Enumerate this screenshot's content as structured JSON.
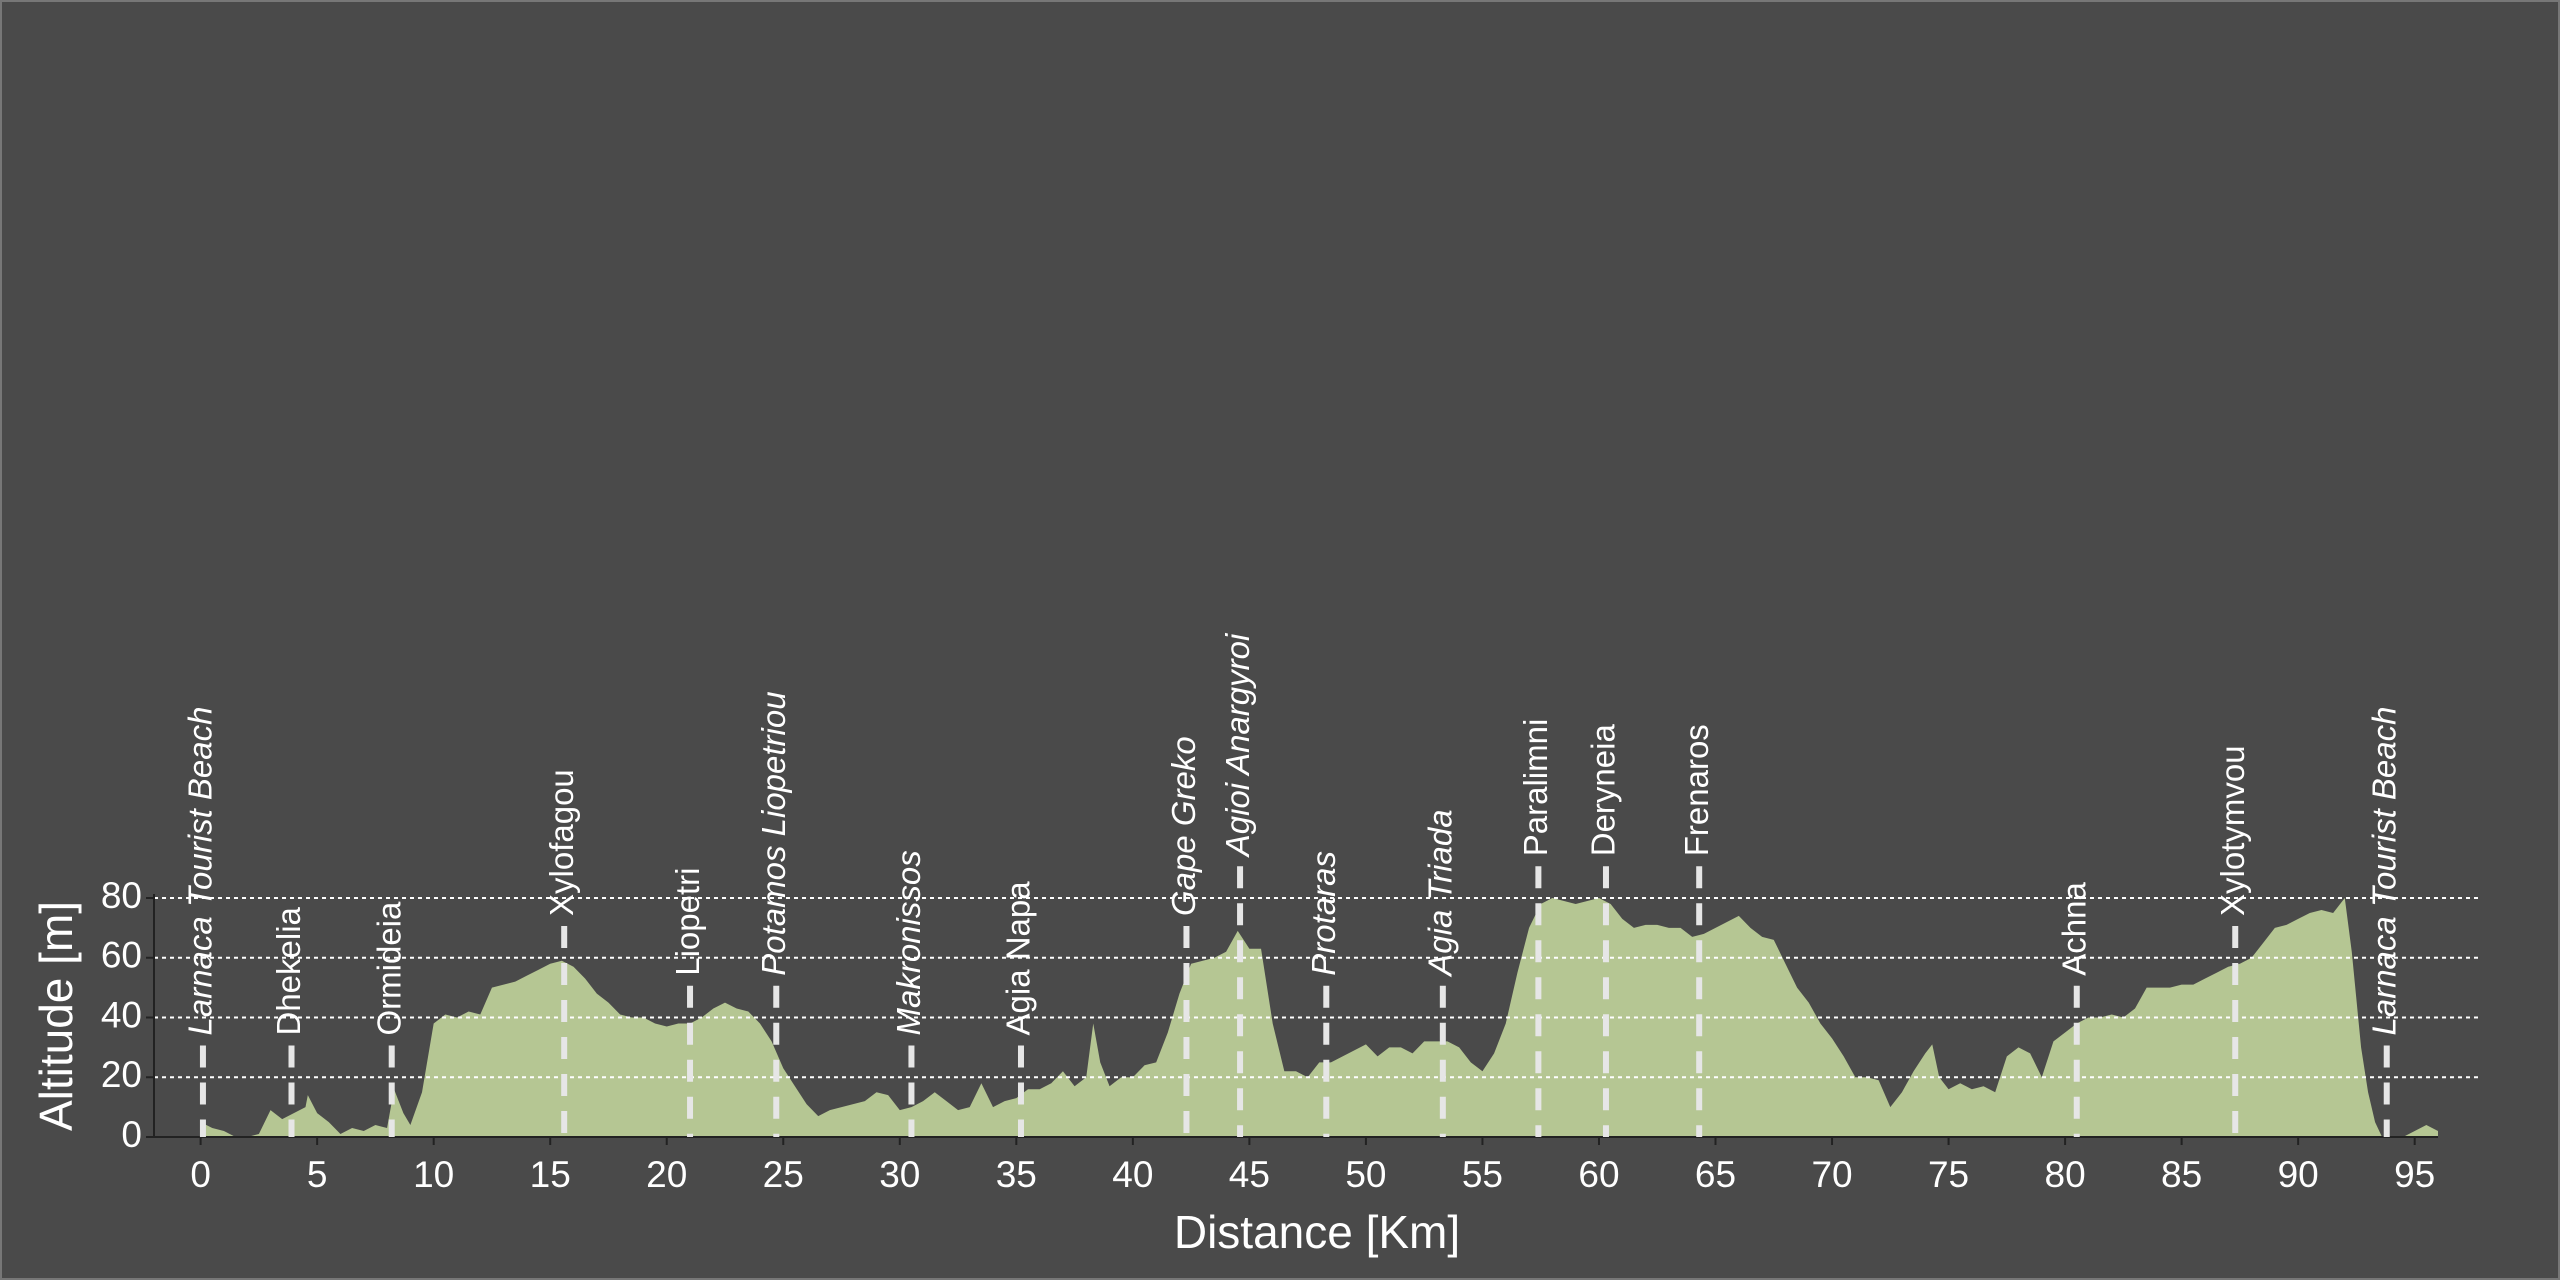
{
  "chart_data": {
    "type": "area",
    "xlabel": "Distance [Km]",
    "ylabel": "Altitude [m]",
    "color": "#b5c693",
    "xlim": [
      -2,
      96
    ],
    "ylim": [
      0,
      80
    ],
    "xticks": [
      0,
      5,
      10,
      15,
      20,
      25,
      30,
      35,
      40,
      45,
      50,
      55,
      60,
      65,
      70,
      75,
      80,
      85,
      90,
      95
    ],
    "yticks": [
      0,
      20,
      40,
      60,
      80
    ],
    "grid": true,
    "x": [
      0,
      0.5,
      1,
      1.5,
      2,
      2.5,
      3,
      3.5,
      4,
      4.5,
      4.6,
      5,
      5.5,
      6,
      6.5,
      7,
      7.5,
      8,
      8.3,
      8.7,
      9,
      9.5,
      10,
      10.5,
      11,
      11.5,
      12,
      12.5,
      13,
      13.5,
      14,
      14.5,
      15,
      15.5,
      16,
      16.5,
      17,
      17.5,
      18,
      18.5,
      19,
      19.5,
      20,
      20.5,
      21,
      21.5,
      22,
      22.5,
      23,
      23.5,
      24,
      24.5,
      25,
      25.5,
      26,
      26.5,
      27,
      27.5,
      28,
      28.5,
      29,
      29.5,
      30,
      30.5,
      31,
      31.5,
      32,
      32.5,
      33,
      33.5,
      34,
      34.5,
      35,
      35.5,
      36,
      36.5,
      37,
      37.5,
      38,
      38.3,
      38.6,
      39,
      39.5,
      40,
      40.5,
      41,
      41.5,
      42,
      42.5,
      43,
      43.5,
      44,
      44.5,
      45,
      45.5,
      46,
      46.5,
      47,
      47.5,
      48,
      48.5,
      49,
      49.5,
      50,
      50.5,
      51,
      51.5,
      52,
      52.5,
      53,
      53.5,
      54,
      54.5,
      55,
      55.5,
      56,
      56.5,
      57,
      57.5,
      58,
      58.5,
      59,
      59.5,
      60,
      60.5,
      61,
      61.5,
      62,
      62.5,
      63,
      63.5,
      64,
      64.5,
      65,
      65.5,
      66,
      66.5,
      67,
      67.5,
      68,
      68.5,
      69,
      69.5,
      70,
      70.5,
      71,
      71.5,
      72,
      72.5,
      73,
      73.5,
      74,
      74.3,
      74.6,
      75,
      75.5,
      76,
      76.5,
      77,
      77.5,
      78,
      78.5,
      79,
      79.5,
      80,
      80.5,
      81,
      81.5,
      82,
      82.5,
      83,
      83.5,
      84,
      84.5,
      85,
      85.5,
      86,
      86.5,
      87,
      87.5,
      88,
      88.5,
      89,
      89.5,
      90,
      90.5,
      91,
      91.5,
      92,
      92.3,
      92.7,
      93,
      93.3,
      93.6,
      94,
      94.5,
      95,
      95.5,
      96
    ],
    "values": [
      5,
      3,
      2,
      0,
      0,
      1,
      9,
      6,
      8,
      10,
      14,
      8,
      5,
      1,
      3,
      2,
      4,
      3,
      16,
      8,
      4,
      15,
      38,
      41,
      40,
      42,
      41,
      50,
      51,
      52,
      54,
      56,
      58,
      59,
      57,
      53,
      48,
      45,
      41,
      40,
      40,
      38,
      37,
      38,
      38,
      40,
      43,
      45,
      43,
      42,
      38,
      32,
      23,
      17,
      11,
      7,
      9,
      10,
      11,
      12,
      15,
      14,
      9,
      10,
      12,
      15,
      12,
      9,
      10,
      18,
      10,
      12,
      13,
      16,
      16,
      18,
      22,
      17,
      20,
      38,
      25,
      17,
      20,
      20,
      24,
      25,
      35,
      48,
      58,
      59,
      60,
      62,
      69,
      63,
      63,
      38,
      22,
      22,
      20,
      25,
      25,
      27,
      29,
      31,
      27,
      30,
      30,
      28,
      32,
      32,
      32,
      30,
      25,
      22,
      28,
      38,
      55,
      70,
      78,
      80,
      79,
      78,
      79,
      80,
      78,
      73,
      70,
      71,
      71,
      70,
      70,
      67,
      68,
      70,
      72,
      74,
      70,
      67,
      66,
      58,
      50,
      45,
      38,
      33,
      27,
      20,
      20,
      19,
      10,
      15,
      22,
      28,
      31,
      20,
      16,
      18,
      16,
      17,
      15,
      27,
      30,
      28,
      20,
      32,
      35,
      38,
      40,
      40,
      41,
      40,
      43,
      50,
      50,
      50,
      51,
      51,
      53,
      55,
      57,
      58,
      60,
      65,
      70,
      71,
      73,
      75,
      76,
      75,
      80,
      62,
      30,
      15,
      5,
      0,
      0,
      0,
      2,
      4,
      2
    ],
    "waypoints": [
      {
        "name": "Larnaca Tourist Beach",
        "km": 0.1,
        "italic": true
      },
      {
        "name": "Dhekelia",
        "km": 3.9,
        "italic": false
      },
      {
        "name": "Ormideia",
        "km": 8.2,
        "italic": false
      },
      {
        "name": "Xylofagou",
        "km": 15.6,
        "italic": false
      },
      {
        "name": "Liopetri",
        "km": 21.0,
        "italic": false
      },
      {
        "name": "Potamos Liopetriou",
        "km": 24.7,
        "italic": true
      },
      {
        "name": "Makronissos",
        "km": 30.5,
        "italic": true
      },
      {
        "name": "Agia Napa",
        "km": 35.2,
        "italic": false
      },
      {
        "name": "Gape Greko",
        "km": 42.3,
        "italic": true
      },
      {
        "name": "Agioi Anargyroi",
        "km": 44.6,
        "italic": true
      },
      {
        "name": "Protaras",
        "km": 48.3,
        "italic": true
      },
      {
        "name": "Agia Triada",
        "km": 53.3,
        "italic": true
      },
      {
        "name": "Paralimni",
        "km": 57.4,
        "italic": false
      },
      {
        "name": "Deryneia",
        "km": 60.3,
        "italic": false
      },
      {
        "name": "Frenaros",
        "km": 64.3,
        "italic": false
      },
      {
        "name": "Achna",
        "km": 80.5,
        "italic": false
      },
      {
        "name": "Xylotymvou",
        "km": 87.3,
        "italic": false
      },
      {
        "name": "Larnaca Tourist Beach",
        "km": 93.8,
        "italic": true
      }
    ]
  }
}
